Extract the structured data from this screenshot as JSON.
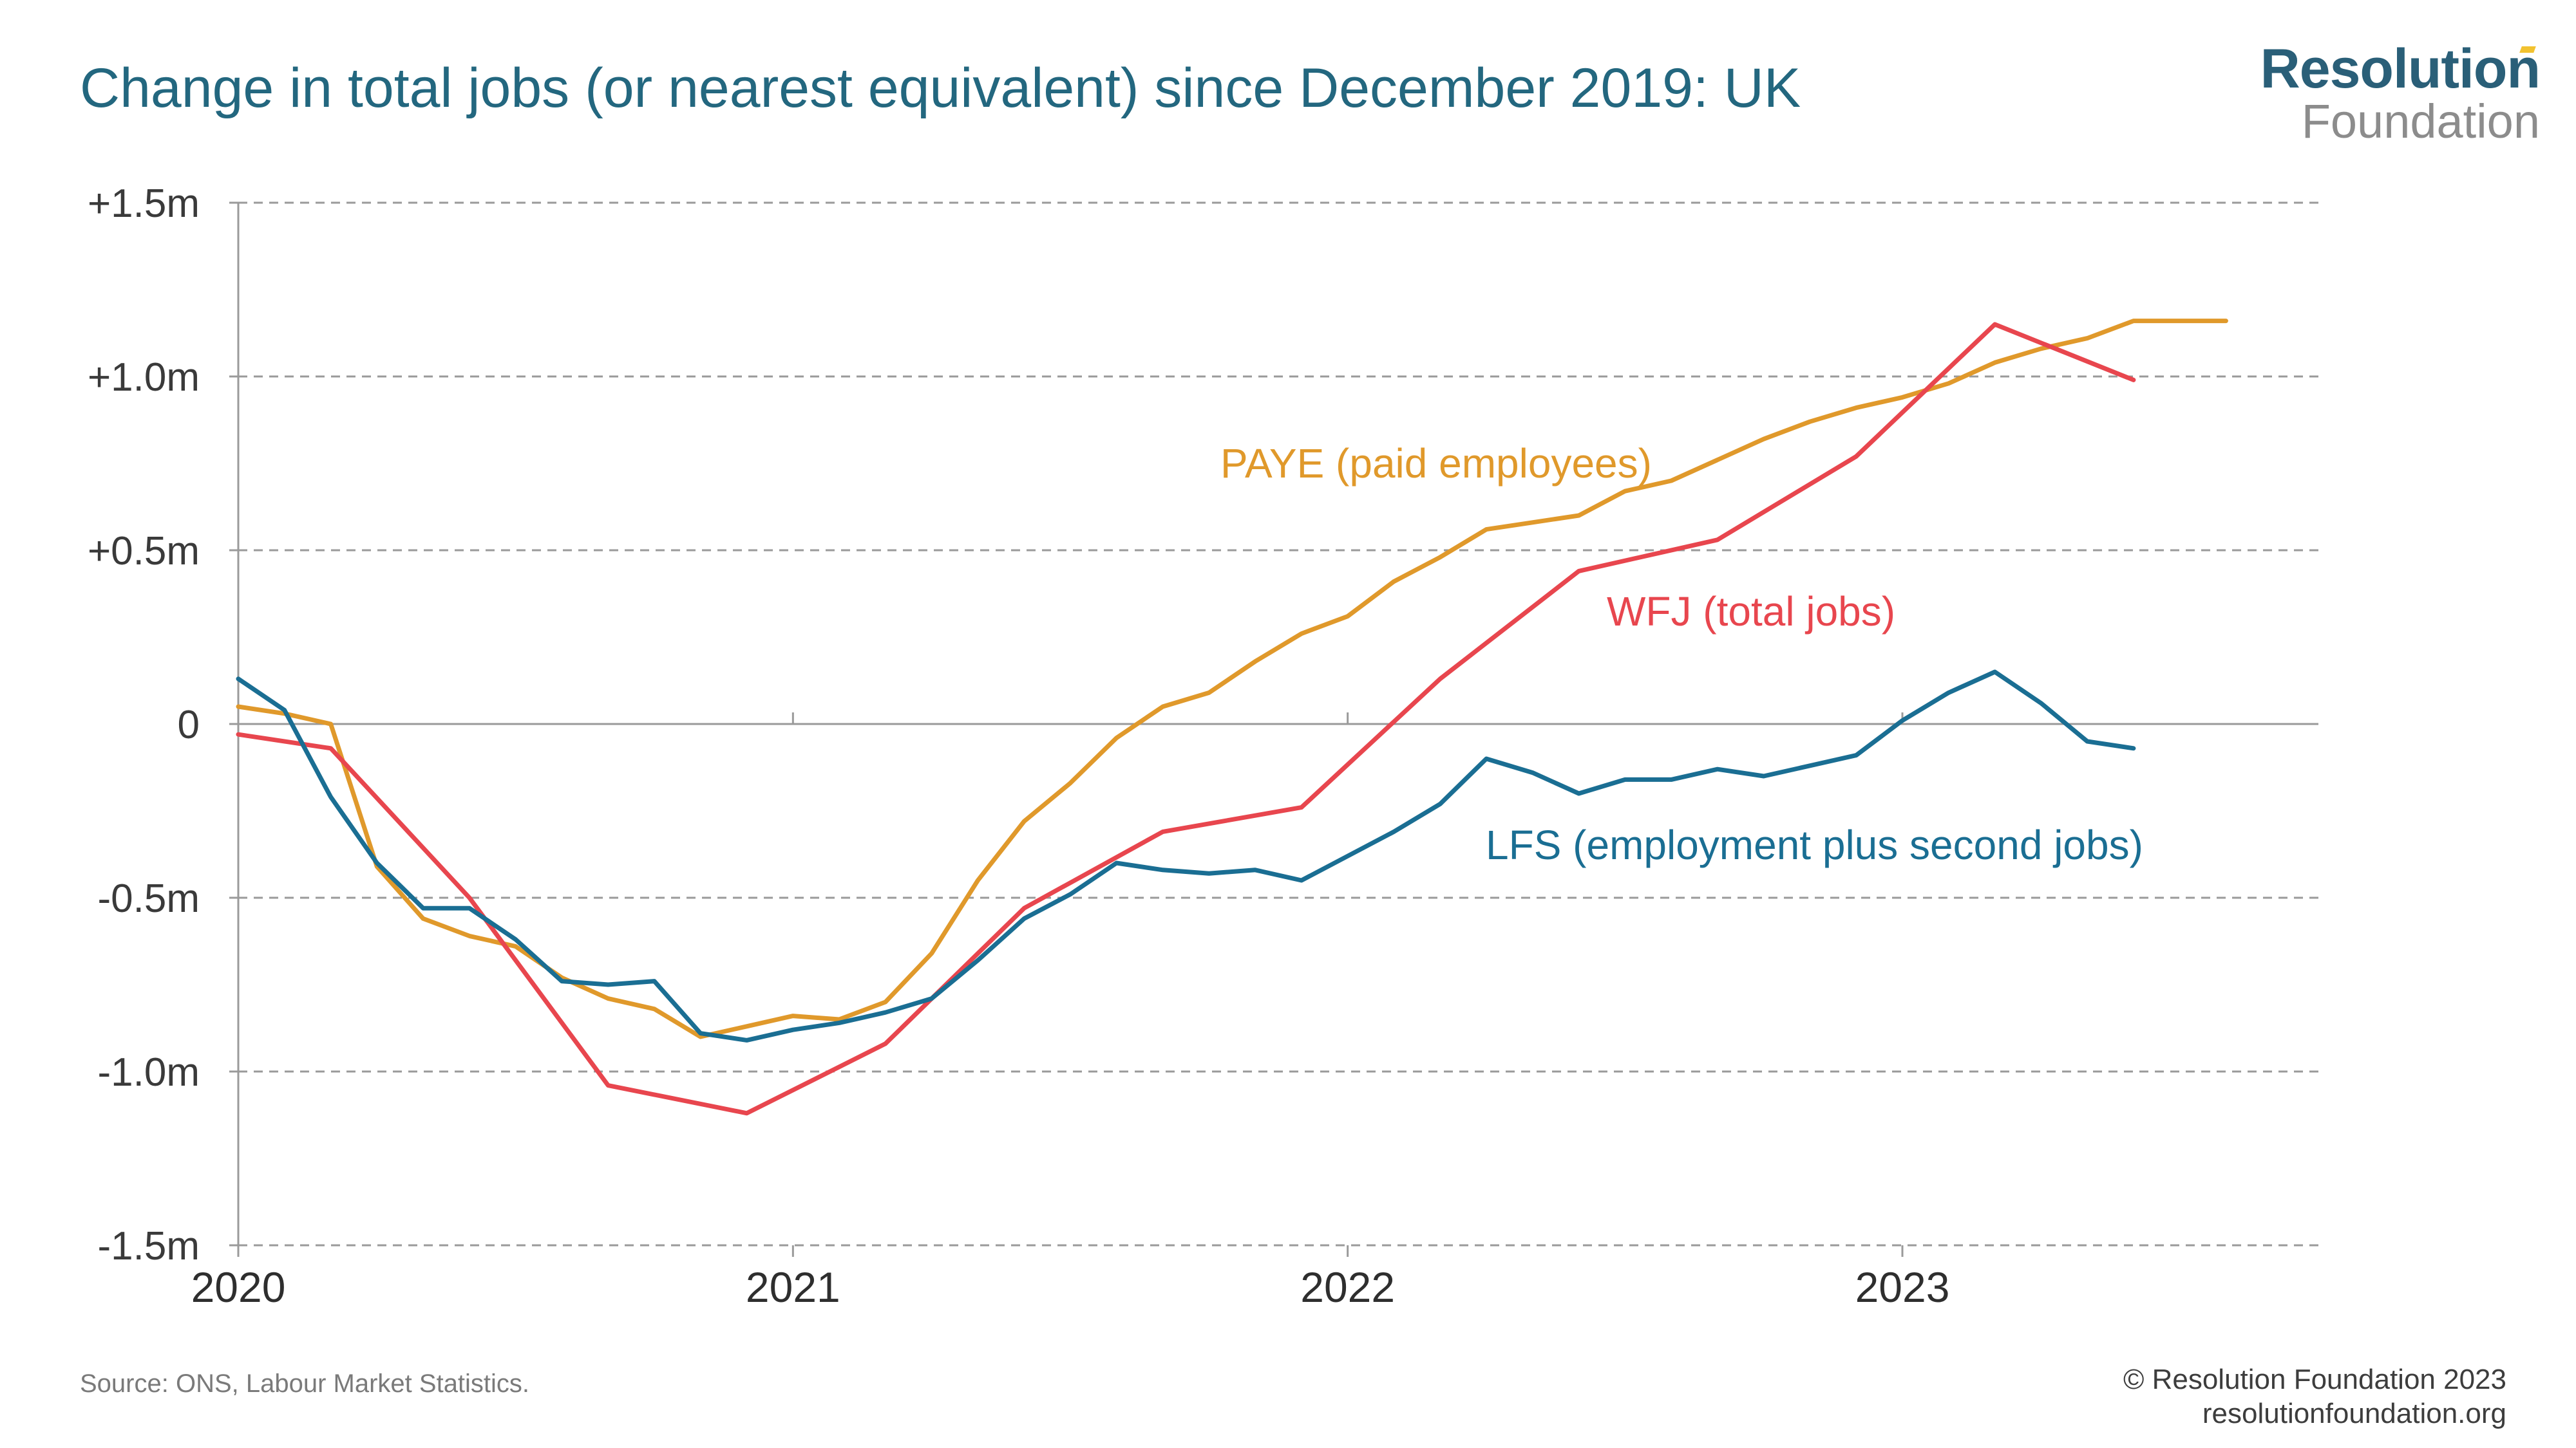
{
  "title": "Change in total jobs (or nearest equivalent) since December 2019: UK",
  "logo": {
    "line1": "Resolution",
    "line2": "Foundation",
    "accent_color": "#f2c230"
  },
  "source": "Source: ONS, Labour Market Statistics.",
  "copyright": {
    "line1": "© Resolution Foundation 2023",
    "line2": "resolutionfoundation.org"
  },
  "chart_data": {
    "type": "line",
    "title": "Change in total jobs (or nearest equivalent) since December 2019: UK",
    "xlabel": "",
    "ylabel": "",
    "xlim": [
      2020.0,
      2023.75
    ],
    "ylim": [
      -1.5,
      1.5
    ],
    "x_ticks": [
      {
        "value": 2020,
        "label": "2020"
      },
      {
        "value": 2021,
        "label": "2021"
      },
      {
        "value": 2022,
        "label": "2022"
      },
      {
        "value": 2023,
        "label": "2023"
      }
    ],
    "y_ticks": [
      {
        "value": 1.5,
        "label": "+1.5m"
      },
      {
        "value": 1.0,
        "label": "+1.0m"
      },
      {
        "value": 0.5,
        "label": "+0.5m"
      },
      {
        "value": 0,
        "label": "0"
      },
      {
        "value": -0.5,
        "label": "-0.5m"
      },
      {
        "value": -1.0,
        "label": "-1.0m"
      },
      {
        "value": -1.5,
        "label": "-1.5m"
      }
    ],
    "grid": "horizontal dashed",
    "series": [
      {
        "name": "PAYE (paid employees)",
        "color": "#e0992b",
        "x": [
          2020.0,
          2020.0833,
          2020.1667,
          2020.25,
          2020.3333,
          2020.4167,
          2020.5,
          2020.5833,
          2020.6667,
          2020.75,
          2020.8333,
          2020.9167,
          2021.0,
          2021.0833,
          2021.1667,
          2021.25,
          2021.3333,
          2021.4167,
          2021.5,
          2021.5833,
          2021.6667,
          2021.75,
          2021.8333,
          2021.9167,
          2022.0,
          2022.0833,
          2022.1667,
          2022.25,
          2022.3333,
          2022.4167,
          2022.5,
          2022.5833,
          2022.6667,
          2022.75,
          2022.8333,
          2022.9167,
          2023.0,
          2023.0833,
          2023.1667,
          2023.25,
          2023.3333,
          2023.4167,
          2023.5,
          2023.5833
        ],
        "values": [
          0.05,
          0.03,
          0.0,
          -0.41,
          -0.56,
          -0.61,
          -0.64,
          -0.73,
          -0.79,
          -0.82,
          -0.9,
          -0.87,
          -0.84,
          -0.85,
          -0.8,
          -0.66,
          -0.45,
          -0.28,
          -0.17,
          -0.04,
          0.05,
          0.09,
          0.18,
          0.26,
          0.31,
          0.41,
          0.48,
          0.56,
          0.58,
          0.6,
          0.67,
          0.7,
          0.76,
          0.82,
          0.87,
          0.91,
          0.94,
          0.98,
          1.04,
          1.08,
          1.11,
          1.16,
          1.16,
          1.16
        ]
      },
      {
        "name": "WFJ (total jobs)",
        "color": "#e8464e",
        "x": [
          2020.0,
          2020.1667,
          2020.4167,
          2020.6667,
          2020.9167,
          2021.1667,
          2021.4167,
          2021.6667,
          2021.9167,
          2022.1667,
          2022.4167,
          2022.6667,
          2022.9167,
          2023.1667,
          2023.4167
        ],
        "values": [
          -0.03,
          -0.07,
          -0.5,
          -1.04,
          -1.12,
          -0.92,
          -0.53,
          -0.31,
          -0.24,
          0.13,
          0.44,
          0.53,
          0.77,
          1.15,
          0.99
        ]
      },
      {
        "name": "LFS (employment plus second jobs)",
        "color": "#1a6e93",
        "x": [
          2020.0,
          2020.0833,
          2020.1667,
          2020.25,
          2020.3333,
          2020.4167,
          2020.5,
          2020.5833,
          2020.6667,
          2020.75,
          2020.8333,
          2020.9167,
          2021.0,
          2021.0833,
          2021.1667,
          2021.25,
          2021.3333,
          2021.4167,
          2021.5,
          2021.5833,
          2021.6667,
          2021.75,
          2021.8333,
          2021.9167,
          2022.0,
          2022.0833,
          2022.1667,
          2022.25,
          2022.3333,
          2022.4167,
          2022.5,
          2022.5833,
          2022.6667,
          2022.75,
          2022.8333,
          2022.9167,
          2023.0,
          2023.0833,
          2023.1667,
          2023.25,
          2023.3333,
          2023.4167
        ],
        "values": [
          0.13,
          0.04,
          -0.21,
          -0.4,
          -0.53,
          -0.53,
          -0.62,
          -0.74,
          -0.75,
          -0.74,
          -0.89,
          -0.91,
          -0.88,
          -0.86,
          -0.83,
          -0.79,
          -0.68,
          -0.56,
          -0.49,
          -0.4,
          -0.42,
          -0.43,
          -0.42,
          -0.45,
          -0.38,
          -0.31,
          -0.23,
          -0.1,
          -0.14,
          -0.2,
          -0.16,
          -0.16,
          -0.13,
          -0.15,
          -0.12,
          -0.09,
          0.01,
          0.09,
          0.15,
          0.06,
          -0.05,
          -0.07
        ]
      }
    ],
    "annotations": [
      {
        "text": "PAYE (paid employees)",
        "series": 0
      },
      {
        "text": "WFJ (total jobs)",
        "series": 1
      },
      {
        "text": "LFS (employment plus second jobs)",
        "series": 2
      }
    ]
  }
}
